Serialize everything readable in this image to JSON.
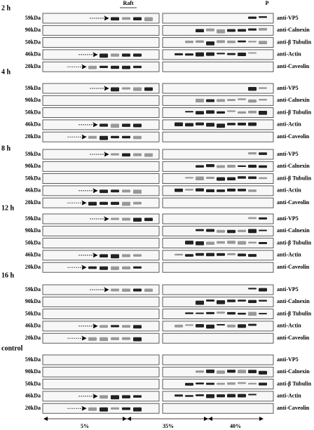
{
  "header": {
    "raft": "Raft",
    "pellet": "P"
  },
  "groups": [
    {
      "label": "2 h",
      "rows": [
        {
          "size": "59kDa",
          "antibody": "anti-VP5"
        },
        {
          "size": "90kDa",
          "antibody": "anti-Calnexin"
        },
        {
          "size": "50kDa",
          "antibody": "anti-β Tubulin"
        },
        {
          "size": "46kDa",
          "antibody": "anti-Actin"
        },
        {
          "size": "20kDa",
          "antibody": "anti-Caveolin"
        }
      ]
    },
    {
      "label": "4 h",
      "rows": [
        {
          "size": "59kDa",
          "antibody": "anti-VP5"
        },
        {
          "size": "90kDa",
          "antibody": "anti-Calnexin"
        },
        {
          "size": "50kDa",
          "antibody": "anti-β Tubulin"
        },
        {
          "size": "46kDa",
          "antibody": "anti-Actin"
        },
        {
          "size": "20kDa",
          "antibody": "anti-Caveolin"
        }
      ]
    },
    {
      "label": "8 h",
      "rows": [
        {
          "size": "59kDa",
          "antibody": "anti-VP5"
        },
        {
          "size": "90kDa",
          "antibody": "anti-Calnexin"
        },
        {
          "size": "50kDa",
          "antibody": "anti-β Tubulin"
        },
        {
          "size": "46kDa",
          "antibody": "anti-Actin"
        },
        {
          "size": "20kDa",
          "antibody": "anti-Caveolin"
        }
      ]
    },
    {
      "label": "12 h",
      "rows": [
        {
          "size": "59kDa",
          "antibody": "anti-VP5"
        },
        {
          "size": "90kDa",
          "antibody": "anti-Calnexin"
        },
        {
          "size": "50kDa",
          "antibody": "anti-β Tubulin"
        },
        {
          "size": "46kDa",
          "antibody": "anti-Actin"
        },
        {
          "size": "20kDa",
          "antibody": "anti-Caveolin"
        }
      ]
    },
    {
      "label": "16 h",
      "rows": [
        {
          "size": "59kDa",
          "antibody": "anti-VP5"
        },
        {
          "size": "90kDa",
          "antibody": "anti-Calnexin"
        },
        {
          "size": "50kDa",
          "antibody": "anti-β Tubulin"
        },
        {
          "size": "46kDa",
          "antibody": "anti-Actin"
        },
        {
          "size": "20kDa",
          "antibody": "anti-Caveolin"
        }
      ]
    },
    {
      "label": "control",
      "rows": [
        {
          "size": "59kDa",
          "antibody": "anti-VP5"
        },
        {
          "size": "90kDa",
          "antibody": "anti-Calnexin"
        },
        {
          "size": "50kDa",
          "antibody": "anti-β Tubulin"
        },
        {
          "size": "46kDa",
          "antibody": "anti-Actin"
        },
        {
          "size": "20kDa",
          "antibody": "anti-Caveolin"
        }
      ]
    }
  ],
  "gradient": [
    "5%",
    "35%",
    "40%"
  ]
}
